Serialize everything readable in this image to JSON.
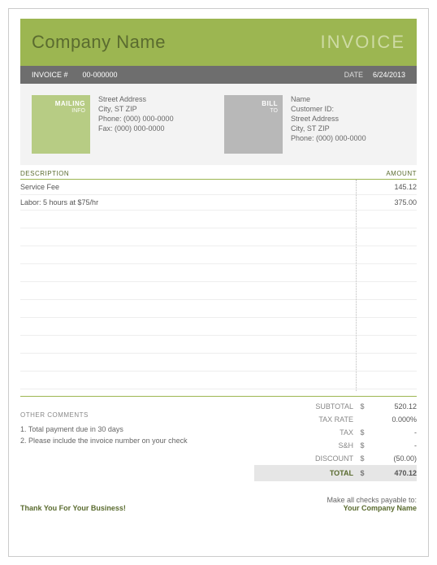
{
  "colors": {
    "brand_green": "#9cb651",
    "brand_green_light": "#b7cc84",
    "brand_green_soft": "#eef2e2",
    "header_text": "#5a6b2f",
    "invoice_title": "#cedba4",
    "dark_band": "#6e6e6e",
    "light_gray_bg": "#f3f3f3",
    "mid_gray": "#b8b8b8",
    "rule_green": "#9cb651",
    "text_muted": "#888888",
    "total_row_bg": "#e6e6e6"
  },
  "header": {
    "company_name": "Company Name",
    "invoice_title": "INVOICE"
  },
  "meta": {
    "invoice_label": "INVOICE #",
    "invoice_number": "00-000000",
    "date_label": "DATE",
    "date_value": "6/24/2013"
  },
  "mailing": {
    "tag_line1": "MAILING",
    "tag_line2": "INFO",
    "lines": [
      "Street Address",
      "City, ST  ZIP",
      "Phone: (000) 000-0000",
      "Fax: (000) 000-0000"
    ]
  },
  "billto": {
    "tag_line1": "BILL",
    "tag_line2": "TO",
    "lines": [
      "Name",
      "Customer ID:",
      "Street Address",
      "City, ST  ZIP",
      "Phone: (000) 000-0000"
    ]
  },
  "items_header": {
    "desc": "DESCRIPTION",
    "amount": "AMOUNT"
  },
  "items": [
    {
      "desc": "Service Fee",
      "amount": "145.12"
    },
    {
      "desc": "Labor: 5 hours at $75/hr",
      "amount": "375.00"
    }
  ],
  "blank_rows": 10,
  "comments": {
    "header": "OTHER COMMENTS",
    "lines": [
      "1. Total payment due in 30 days",
      "2. Please include the invoice number on your check"
    ]
  },
  "totals": {
    "currency": "$",
    "rows": [
      {
        "label": "SUBTOTAL",
        "value": "520.12",
        "show_currency": true
      },
      {
        "label": "TAX RATE",
        "value": "0.000%",
        "show_currency": false
      },
      {
        "label": "TAX",
        "value": "-",
        "show_currency": true
      },
      {
        "label": "S&H",
        "value": "-",
        "show_currency": true
      },
      {
        "label": "DISCOUNT",
        "value": "(50.00)",
        "show_currency": true
      }
    ],
    "total_label": "TOTAL",
    "total_value": "470.12"
  },
  "footer": {
    "thank_you": "Thank You For Your Business!",
    "payable_line1": "Make all checks payable to:",
    "payable_line2": "Your Company Name"
  }
}
